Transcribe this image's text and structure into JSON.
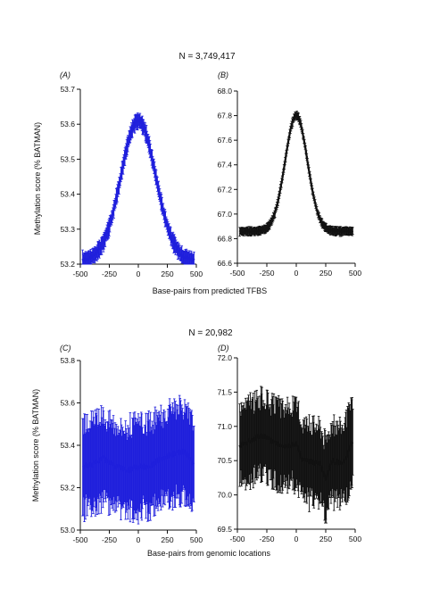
{
  "figure": {
    "n_top": "N = 3,749,417",
    "n_bottom": "N = 20,982",
    "xlabel_top": "Base-pairs from predicted TFBS",
    "xlabel_bottom": "Base-pairs from genomic locations",
    "ylabel": "Methylation score (% BATMAN)"
  },
  "chart_data": [
    {
      "id": "A",
      "panel_label": "(A)",
      "type": "line",
      "color": "#1f1fdc",
      "x_range": [
        -500,
        500
      ],
      "x_ticks": [
        -500,
        -250,
        0,
        250,
        500
      ],
      "ylim": [
        53.2,
        53.7
      ],
      "y_ticks": [
        "53.2",
        "53.3",
        "53.4",
        "53.5",
        "53.6",
        "53.7"
      ],
      "series": [
        {
          "peak_x": 0,
          "peak_y": 53.61,
          "baseline": 53.21,
          "width_sd": 150,
          "err": 0.02,
          "x": [
            -480,
            -400,
            -300,
            -250,
            -200,
            -150,
            -100,
            -50,
            0,
            50,
            100,
            150,
            200,
            250,
            300,
            400,
            480
          ],
          "y": [
            53.24,
            53.26,
            53.31,
            53.35,
            53.4,
            53.46,
            53.53,
            53.59,
            53.61,
            53.59,
            53.53,
            53.46,
            53.4,
            53.35,
            53.31,
            53.26,
            53.24
          ]
        }
      ]
    },
    {
      "id": "B",
      "panel_label": "(B)",
      "type": "line",
      "color": "#111111",
      "x_range": [
        -500,
        500
      ],
      "x_ticks": [
        -500,
        -250,
        0,
        250,
        500
      ],
      "ylim": [
        66.6,
        68.0
      ],
      "y_ticks": [
        "66.6",
        "66.8",
        "67.0",
        "67.2",
        "67.4",
        "67.6",
        "67.8",
        "68.0"
      ],
      "series": [
        {
          "peak_x": 0,
          "peak_y": 67.8,
          "baseline": 66.86,
          "width_sd": 95,
          "err": 0.03,
          "x": [
            -480,
            -400,
            -300,
            -250,
            -200,
            -150,
            -100,
            -50,
            0,
            50,
            100,
            150,
            200,
            250,
            300,
            400,
            480
          ],
          "y": [
            66.98,
            66.92,
            66.86,
            66.87,
            66.9,
            67.02,
            67.25,
            67.62,
            67.8,
            67.62,
            67.25,
            67.02,
            66.9,
            66.85,
            66.83,
            66.85,
            66.93
          ]
        }
      ]
    },
    {
      "id": "C",
      "panel_label": "(C)",
      "type": "line",
      "color": "#1f1fdc",
      "x_range": [
        -500,
        500
      ],
      "x_ticks": [
        -500,
        -250,
        0,
        250,
        500
      ],
      "ylim": [
        53.0,
        53.8
      ],
      "y_ticks": [
        "53.0",
        "53.2",
        "53.4",
        "53.6",
        "53.8"
      ],
      "series": [
        {
          "err": 0.2,
          "x": [
            -480,
            -400,
            -300,
            -200,
            -100,
            0,
            100,
            200,
            300,
            400,
            480
          ],
          "y": [
            53.3,
            53.31,
            53.34,
            53.3,
            53.28,
            53.3,
            53.3,
            53.34,
            53.36,
            53.37,
            53.31
          ]
        }
      ]
    },
    {
      "id": "D",
      "panel_label": "(D)",
      "type": "line",
      "color": "#111111",
      "x_range": [
        -500,
        500
      ],
      "x_ticks": [
        -500,
        -250,
        0,
        250,
        500
      ],
      "ylim": [
        69.5,
        72.0
      ],
      "y_ticks": [
        "69.5",
        "70.0",
        "70.5",
        "71.0",
        "71.5",
        "72.0"
      ],
      "series": [
        {
          "err": 0.55,
          "x": [
            -480,
            -400,
            -300,
            -250,
            -200,
            -100,
            0,
            50,
            100,
            200,
            250,
            300,
            400,
            480
          ],
          "y": [
            70.72,
            70.79,
            70.87,
            70.83,
            70.78,
            70.7,
            70.75,
            70.5,
            70.5,
            70.45,
            70.22,
            70.5,
            70.45,
            70.78
          ]
        }
      ]
    }
  ]
}
